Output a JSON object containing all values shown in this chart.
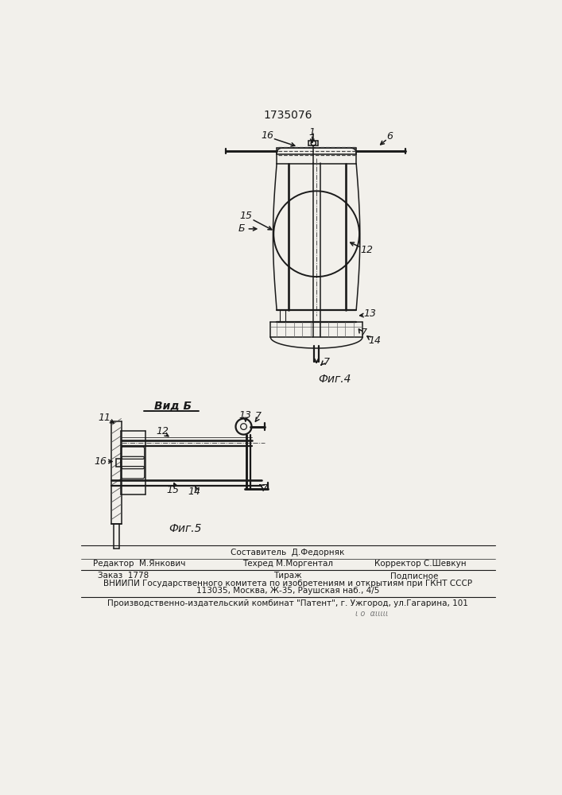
{
  "patent_number": "1735076",
  "fig4_caption": "Фиг.4",
  "fig5_caption": "Фиг.5",
  "vid_b_label": "Вид Б",
  "bg_color": "#f2f0eb",
  "line_color": "#1a1a1a"
}
